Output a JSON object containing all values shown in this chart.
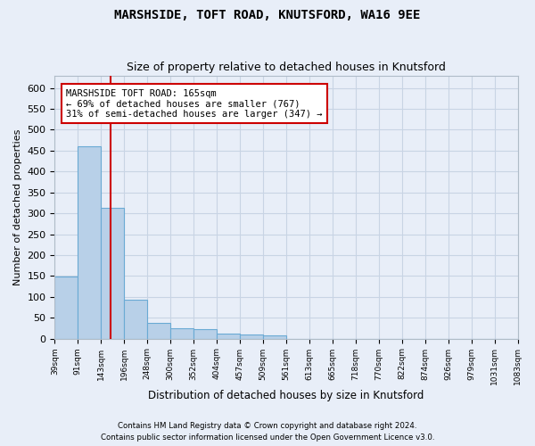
{
  "title": "MARSHSIDE, TOFT ROAD, KNUTSFORD, WA16 9EE",
  "subtitle": "Size of property relative to detached houses in Knutsford",
  "xlabel": "Distribution of detached houses by size in Knutsford",
  "ylabel": "Number of detached properties",
  "bar_values": [
    148,
    461,
    312,
    93,
    37,
    24,
    23,
    12,
    10,
    8,
    0,
    0,
    0,
    0,
    0,
    0,
    0,
    0,
    0,
    0
  ],
  "n_bins": 20,
  "tick_labels": [
    "39sqm",
    "91sqm",
    "143sqm",
    "196sqm",
    "248sqm",
    "300sqm",
    "352sqm",
    "404sqm",
    "457sqm",
    "509sqm",
    "561sqm",
    "613sqm",
    "665sqm",
    "718sqm",
    "770sqm",
    "822sqm",
    "874sqm",
    "926sqm",
    "979sqm",
    "1031sqm",
    "1083sqm"
  ],
  "bar_color": "#b8d0e8",
  "bar_edge_color": "#6aaad4",
  "vline_x": 2,
  "vline_color": "#cc0000",
  "annotation_text": "MARSHSIDE TOFT ROAD: 165sqm\n← 69% of detached houses are smaller (767)\n31% of semi-detached houses are larger (347) →",
  "annotation_box_color": "#ffffff",
  "annotation_box_edge": "#cc0000",
  "ylim": [
    0,
    630
  ],
  "yticks": [
    0,
    50,
    100,
    150,
    200,
    250,
    300,
    350,
    400,
    450,
    500,
    550,
    600
  ],
  "grid_color": "#c8d4e4",
  "background_color": "#e8eef8",
  "footer_line1": "Contains HM Land Registry data © Crown copyright and database right 2024.",
  "footer_line2": "Contains public sector information licensed under the Open Government Licence v3.0."
}
